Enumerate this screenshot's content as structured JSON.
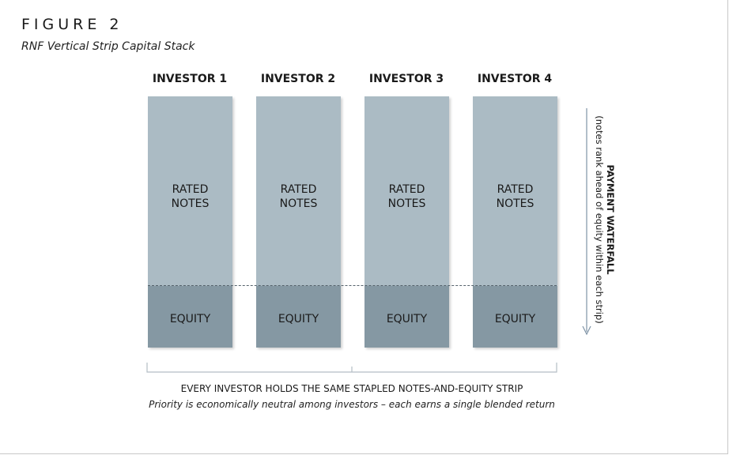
{
  "figure_label": "FIGURE 2",
  "figure_title": "RNF Vertical Strip Capital Stack",
  "investors": [
    {
      "name": "INVESTOR 1",
      "notes_label": "RATED\nNOTES",
      "equity_label": "EQUITY"
    },
    {
      "name": "INVESTOR 2",
      "notes_label": "RATED\nNOTES",
      "equity_label": "EQUITY"
    },
    {
      "name": "INVESTOR 3",
      "notes_label": "RATED\nNOTES",
      "equity_label": "EQUITY"
    },
    {
      "name": "INVESTOR 4",
      "notes_label": "RATED\nNOTES",
      "equity_label": "EQUITY"
    }
  ],
  "waterfall": {
    "title": "PAYMENT WATERFALL",
    "subtitle": "(notes rank ahead of equity within each strip)"
  },
  "footer": {
    "title": "EVERY INVESTOR HOLDS THE SAME STAPLED NOTES-AND-EQUITY STRIP",
    "subtitle": "Priority is economically neutral among investors – each earns a single blended return"
  },
  "colors": {
    "notes": "#abbbc4",
    "equity": "#8598a3",
    "divider": "#55626b",
    "arrow": "#7f94a6"
  }
}
